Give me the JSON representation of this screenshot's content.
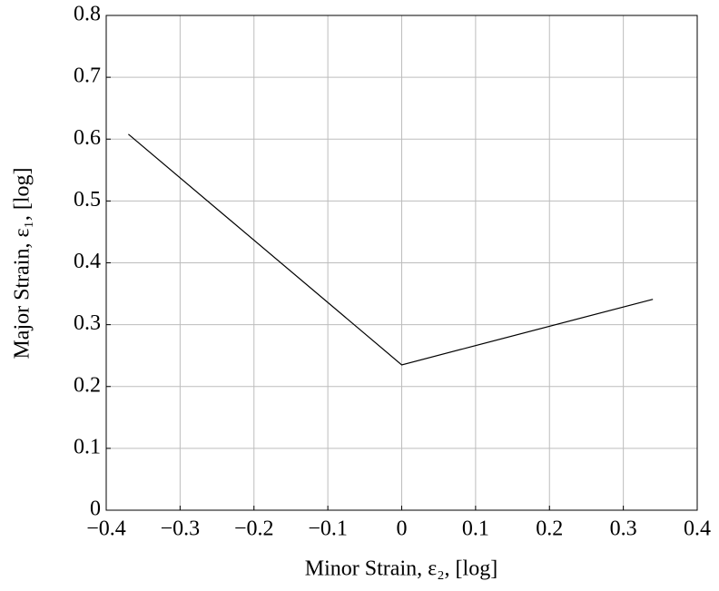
{
  "chart_data": {
    "type": "line",
    "xlabel": "Minor Strain, ε₂, [log]",
    "ylabel": "Major Strain, ε₁, [log]",
    "x": [
      -0.37,
      0,
      0.34
    ],
    "series": [
      {
        "color": "#000000",
        "values": [
          0.608,
          0.235,
          0.341
        ]
      }
    ],
    "xlim": [
      -0.4,
      0.4
    ],
    "xticks": [
      {
        "value": -0.4,
        "label": "−0.4"
      },
      {
        "value": -0.3,
        "label": "−0.3"
      },
      {
        "value": -0.2,
        "label": "−0.2"
      },
      {
        "value": -0.1,
        "label": "−0.1"
      },
      0,
      0.1,
      0.2,
      0.3,
      0.4
    ],
    "ylim": [
      0,
      0.8
    ],
    "yticks": [
      0,
      0.1,
      0.2,
      0.3,
      0.4,
      0.5,
      0.6,
      0.7,
      0.8
    ],
    "grid": true
  }
}
